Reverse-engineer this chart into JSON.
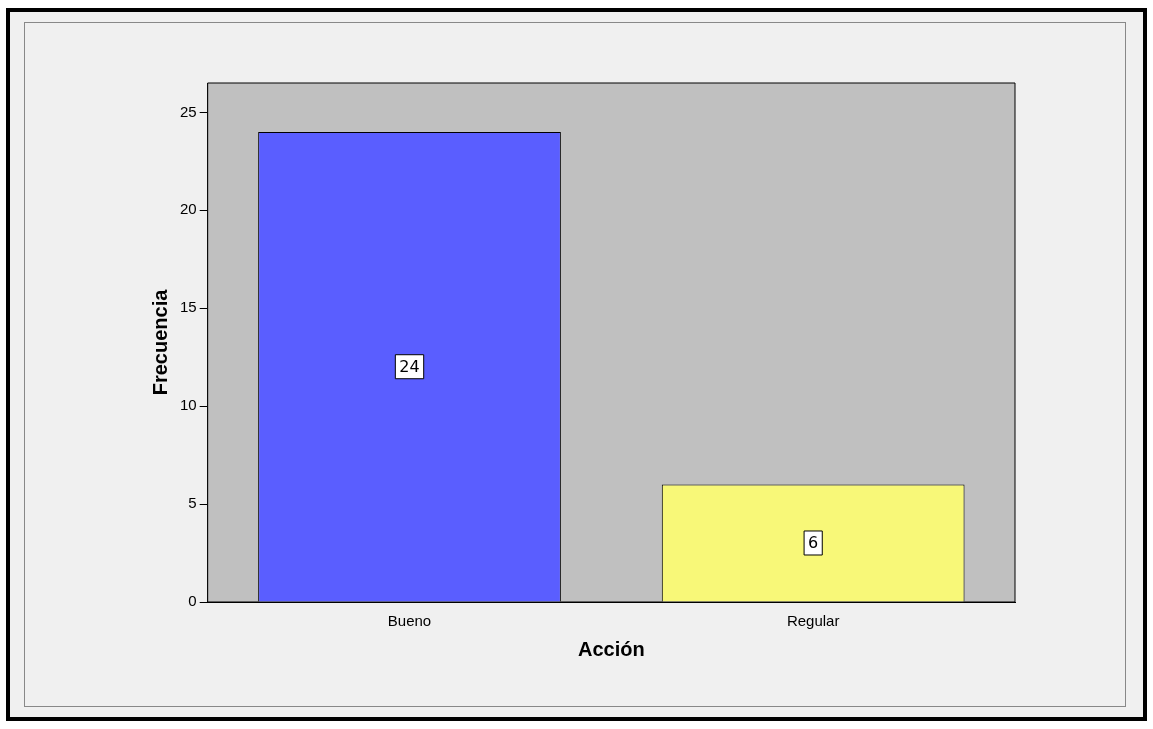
{
  "chart_data": {
    "type": "bar",
    "xlabel": "Acción",
    "ylabel": "Frecuencia",
    "categories": [
      "Bueno",
      "Regular"
    ],
    "values": [
      24,
      6
    ],
    "colors": [
      "#5a5eff",
      "#f8f878"
    ],
    "ylim": [
      0,
      26.5
    ],
    "yticks": [
      0,
      5,
      10,
      15,
      20,
      25
    ],
    "data_labels": true
  }
}
